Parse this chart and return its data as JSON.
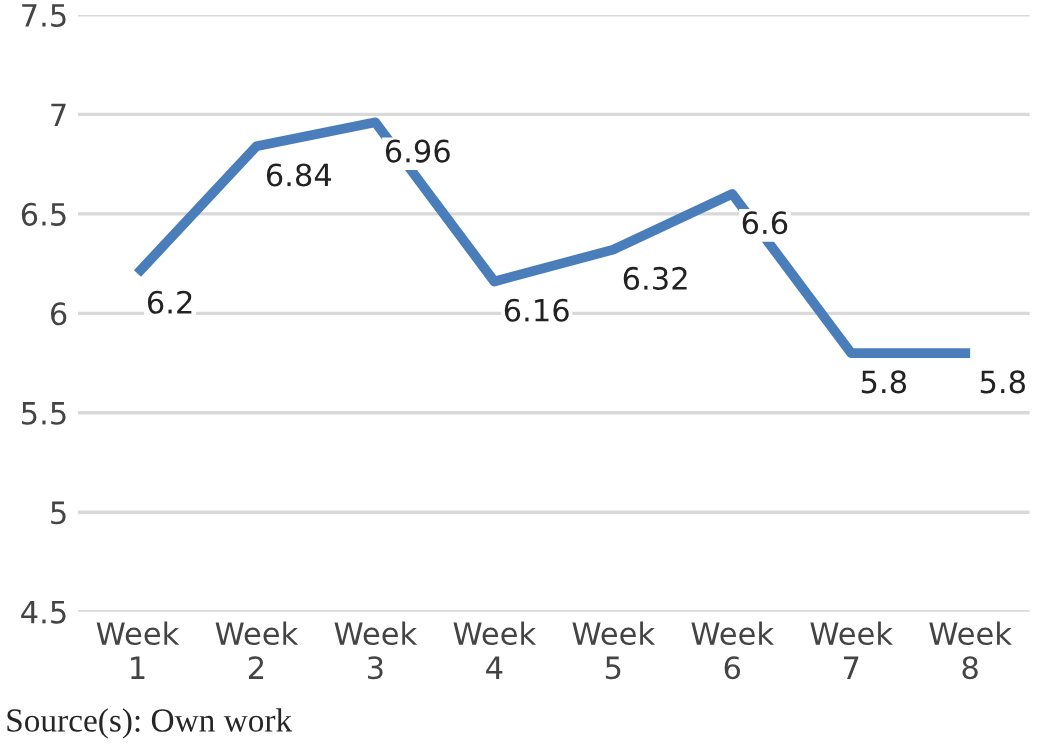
{
  "chart_data": {
    "type": "line",
    "categories": [
      "Week\n1",
      "Week\n2",
      "Week\n3",
      "Week\n4",
      "Week\n5",
      "Week\n6",
      "Week\n7",
      "Week\n8"
    ],
    "series": [
      {
        "color": "#4a7ebb",
        "values": [
          6.2,
          6.84,
          6.96,
          6.16,
          6.32,
          6.6,
          5.8,
          5.8
        ]
      }
    ],
    "ylim": [
      4.5,
      7.5
    ],
    "yticks": [
      4.5,
      5,
      5.5,
      6,
      6.5,
      7,
      7.5
    ],
    "grid": "y",
    "data_labels": true,
    "marker": "none",
    "line_style": "solid",
    "annotations": [
      "Source(s): Own work"
    ]
  }
}
